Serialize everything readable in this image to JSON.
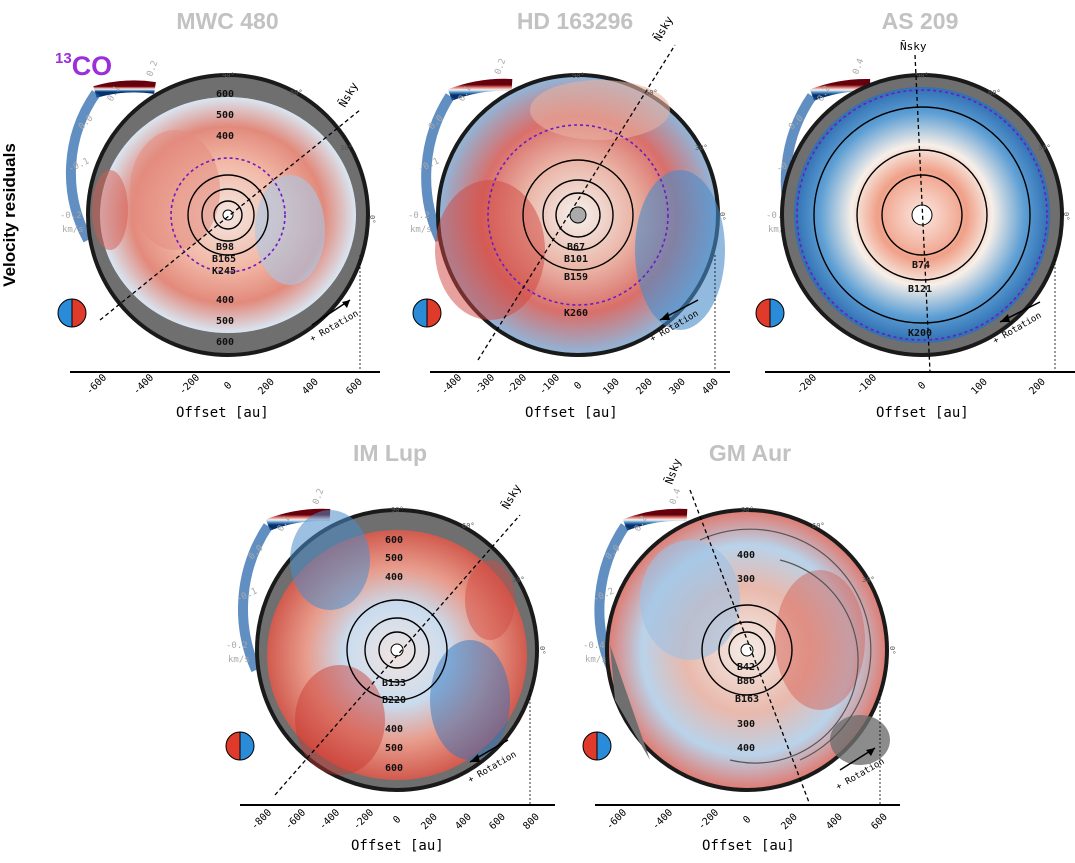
{
  "figure": {
    "row_label": "Velocity residuals",
    "molecule_mass": "13",
    "molecule_name": "CO",
    "colors": {
      "red": "#c0272d",
      "blue": "#1f6fb5",
      "gap": "#6f6f6f",
      "purple": "#8a2be2"
    }
  },
  "panels": [
    {
      "title": "MWC 480",
      "cb_max": "0.2",
      "cb_mid": "0.1",
      "cb_zero": "0.0",
      "cb_neg": "-0.1",
      "cb_min": "-0.2",
      "cb_unit": "km/s",
      "deg90": "90°",
      "deg60": "60°",
      "deg30": "30°",
      "deg0": "0°",
      "radii_top": [
        "600",
        "500",
        "400"
      ],
      "radii_bottom": [
        "400",
        "500",
        "600"
      ],
      "features": [
        "B98",
        "B165",
        "K245"
      ],
      "north": "N̄sky",
      "rotation": "+ Rotation",
      "xticks": [
        "-600",
        "-400",
        "-200",
        "0",
        "200",
        "400",
        "600"
      ],
      "xlabel": "Offset [au]"
    },
    {
      "title": "HD 163296",
      "cb_max": "0.2",
      "cb_mid": "0.1",
      "cb_zero": "0.0",
      "cb_neg": "-0.1",
      "cb_min": "-0.2",
      "cb_unit": "km/s",
      "deg90": "90°",
      "deg60": "60°",
      "deg30": "30°",
      "deg0": "0°",
      "features": [
        "B67",
        "B101",
        "B159",
        "K260"
      ],
      "north": "N̄sky",
      "rotation": "+ Rotation",
      "xticks": [
        "-400",
        "-300",
        "-200",
        "-100",
        "0",
        "100",
        "200",
        "300",
        "400"
      ],
      "xlabel": "Offset [au]"
    },
    {
      "title": "AS 209",
      "cb_max": "0.4",
      "cb_mid": "0.2",
      "cb_zero": "0.0",
      "cb_neg": "-0.2",
      "cb_min": "-0.4",
      "cb_unit": "km/s",
      "deg90": "90°",
      "deg60": "60°",
      "deg30": "30°",
      "deg0": "0°",
      "features": [
        "B74",
        "B121",
        "K200"
      ],
      "north": "N̄sky",
      "rotation": "+ Rotation",
      "xticks": [
        "-200",
        "-100",
        "0",
        "100",
        "200"
      ],
      "xlabel": "Offset [au]"
    },
    {
      "title": "IM Lup",
      "cb_max": "0.2",
      "cb_mid": "0.1",
      "cb_zero": "0.0",
      "cb_neg": "-0.1",
      "cb_min": "-0.2",
      "cb_unit": "km/s",
      "deg90": "90°",
      "deg60": "60°",
      "deg30": "30°",
      "deg0": "0°",
      "radii_top": [
        "600",
        "500",
        "400"
      ],
      "radii_bottom": [
        "400",
        "500",
        "600"
      ],
      "features": [
        "B133",
        "B220"
      ],
      "north": "N̄sky",
      "rotation": "+ Rotation",
      "xticks": [
        "-800",
        "-600",
        "-400",
        "-200",
        "0",
        "200",
        "400",
        "600",
        "800"
      ],
      "xlabel": "Offset [au]"
    },
    {
      "title": "GM Aur",
      "cb_max": "0.4",
      "cb_mid": "0.2",
      "cb_zero": "0.0",
      "cb_neg": "-0.2",
      "cb_min": "-0.4",
      "cb_unit": "km/s",
      "deg90": "90°",
      "deg60": "60°",
      "deg30": "30°",
      "deg0": "0°",
      "radii_top": [
        "400",
        "300"
      ],
      "radii_bottom": [
        "300",
        "400"
      ],
      "features": [
        "B42",
        "B86",
        "B163"
      ],
      "north": "N̄sky",
      "rotation": "+ Rotation",
      "xticks": [
        "-600",
        "-400",
        "-200",
        "0",
        "200",
        "400",
        "600"
      ],
      "xlabel": "Offset [au]"
    }
  ]
}
